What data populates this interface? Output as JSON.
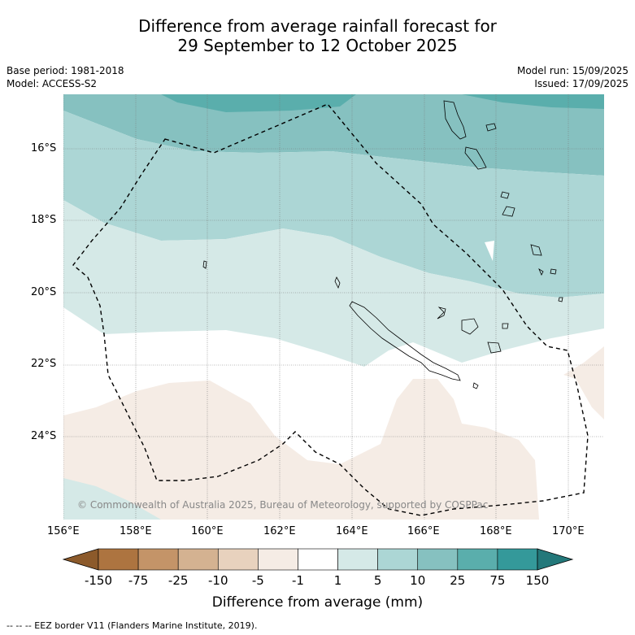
{
  "title_line1": "Difference from average rainfall forecast for",
  "title_line2": "29 September to 12 October 2025",
  "base_period": "Base period: 1981-2018",
  "model": "Model: ACCESS-S2",
  "model_run": "Model run: 15/09/2025",
  "issued": "Issued: 17/09/2025",
  "copyright": "© Commonwealth of Australia 2025, Bureau of Meteorology, supported by COSPPac",
  "lat_labels": [
    "16°S",
    "18°S",
    "20°S",
    "22°S",
    "24°S"
  ],
  "lon_labels": [
    "156°E",
    "158°E",
    "160°E",
    "162°E",
    "164°E",
    "166°E",
    "168°E",
    "170°E"
  ],
  "colorbar": {
    "title": "Difference from average (mm)",
    "tick_labels": [
      "-150",
      "-75",
      "-25",
      "-10",
      "-5",
      "-1",
      "1",
      "5",
      "10",
      "25",
      "75",
      "150"
    ],
    "colors": [
      "#8c5a2b",
      "#ad7440",
      "#c49468",
      "#d4b291",
      "#e8d2be",
      "#f5ece5",
      "#ffffff",
      "#d5e9e7",
      "#acd6d5",
      "#86c1c0",
      "#5aaeac",
      "#34999a",
      "#23787a"
    ]
  },
  "footnote": "-- -- -- EEZ border V11 (Flanders Marine Institute, 2019).",
  "colors": {
    "gridline": "#777777",
    "eez_border": "#000000",
    "coast": "#000000"
  }
}
